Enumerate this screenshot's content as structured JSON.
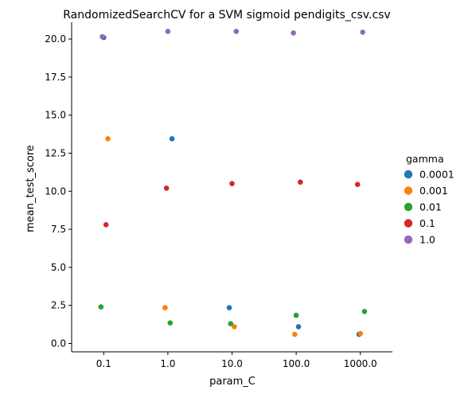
{
  "chart_data": {
    "type": "scatter",
    "title": "RandomizedSearchCV for a SVM sigmoid pendigits_csv.csv",
    "xlabel": "param_C",
    "ylabel": "mean_test_score",
    "categories": [
      "0.1",
      "1.0",
      "10.0",
      "100.0",
      "1000.0"
    ],
    "ylim": [
      -0.55,
      21.1
    ],
    "yticks": [
      "0.0",
      "2.5",
      "5.0",
      "7.5",
      "10.0",
      "12.5",
      "15.0",
      "17.5",
      "20.0"
    ],
    "ytick_values": [
      0,
      2.5,
      5,
      7.5,
      10,
      12.5,
      15,
      17.5,
      20
    ],
    "grid": false,
    "legend": {
      "title": "gamma",
      "placement": "right"
    },
    "series": [
      {
        "name": "0.0001",
        "color": "#1f77b4",
        "points": [
          {
            "x": 0.1,
            "y": 20.1
          },
          {
            "x": 1.0,
            "y": 13.45
          },
          {
            "x": 10.0,
            "y": 2.35
          },
          {
            "x": 100.0,
            "y": 1.1
          },
          {
            "x": 1000.0,
            "y": 0.6
          }
        ]
      },
      {
        "name": "0.001",
        "color": "#ff7f0e",
        "points": [
          {
            "x": 0.1,
            "y": 13.45
          },
          {
            "x": 1.0,
            "y": 2.35
          },
          {
            "x": 10.0,
            "y": 1.1
          },
          {
            "x": 100.0,
            "y": 0.6
          },
          {
            "x": 1000.0,
            "y": 0.65
          }
        ]
      },
      {
        "name": "0.01",
        "color": "#2ca02c",
        "points": [
          {
            "x": 0.1,
            "y": 2.4
          },
          {
            "x": 1.0,
            "y": 1.35
          },
          {
            "x": 10.0,
            "y": 1.3
          },
          {
            "x": 100.0,
            "y": 1.85
          },
          {
            "x": 1000.0,
            "y": 2.1
          }
        ]
      },
      {
        "name": "0.1",
        "color": "#d62728",
        "points": [
          {
            "x": 0.1,
            "y": 7.8
          },
          {
            "x": 1.0,
            "y": 10.2
          },
          {
            "x": 10.0,
            "y": 10.5
          },
          {
            "x": 100.0,
            "y": 10.6
          },
          {
            "x": 1000.0,
            "y": 10.45
          }
        ]
      },
      {
        "name": "1.0",
        "color": "#9467bd",
        "points": [
          {
            "x": 0.1,
            "y": 20.15
          },
          {
            "x": 1.0,
            "y": 20.5
          },
          {
            "x": 10.0,
            "y": 20.5
          },
          {
            "x": 100.0,
            "y": 20.4
          },
          {
            "x": 1000.0,
            "y": 20.45
          }
        ]
      }
    ]
  }
}
